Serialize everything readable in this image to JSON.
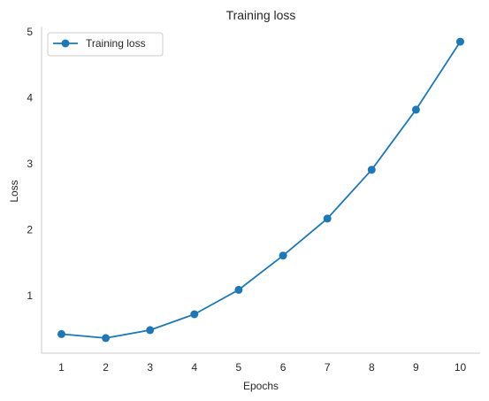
{
  "chart_data": {
    "type": "line",
    "title": "Training  loss",
    "xlabel": "Epochs",
    "ylabel": "Loss",
    "x": [
      1,
      2,
      3,
      4,
      5,
      6,
      7,
      8,
      9,
      10
    ],
    "series": [
      {
        "name": "Training loss",
        "values": [
          0.42,
          0.36,
          0.48,
          0.72,
          1.09,
          1.61,
          2.17,
          2.91,
          3.82,
          4.85
        ],
        "color": "#1f77b4"
      }
    ],
    "xticks": [
      "1",
      "2",
      "3",
      "4",
      "5",
      "6",
      "7",
      "8",
      "9",
      "10"
    ],
    "yticks": [
      "1",
      "2",
      "3",
      "4",
      "5"
    ],
    "xlim": [
      0.55,
      10.45
    ],
    "ylim": [
      0.13,
      5.08
    ],
    "grid": false,
    "legend_position": "top-left"
  }
}
